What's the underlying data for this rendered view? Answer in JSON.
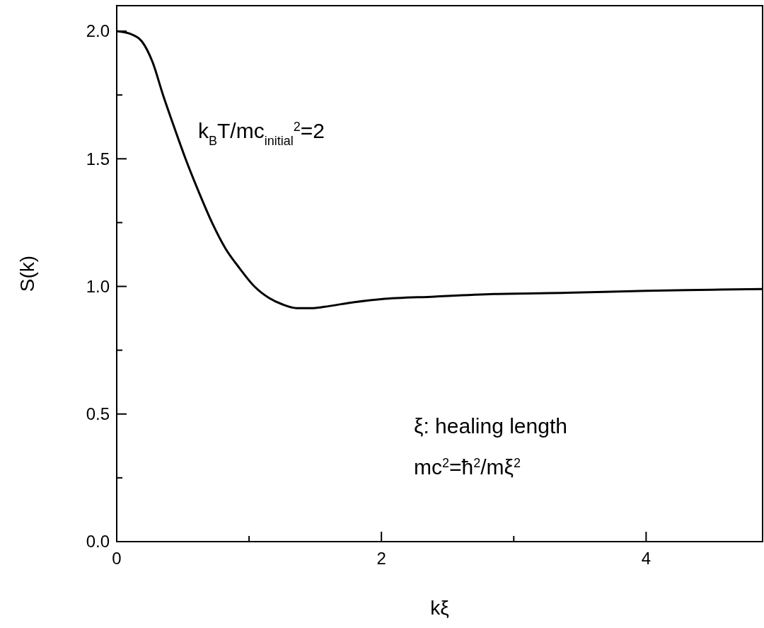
{
  "chart_data": {
    "type": "line",
    "xlabel": "kξ",
    "ylabel": "S(k)",
    "xlim": [
      0,
      4.88
    ],
    "ylim": [
      0,
      2.1
    ],
    "xticks": [
      0,
      {
        "value": 1,
        "label": null
      },
      2,
      {
        "value": 3,
        "label": null
      },
      4
    ],
    "yticks": [
      {
        "value": 0,
        "label": "0.0"
      },
      {
        "value": 0.25,
        "label": null
      },
      {
        "value": 0.5,
        "label": "0.5"
      },
      {
        "value": 0.75,
        "label": null
      },
      {
        "value": 1,
        "label": "1.0"
      },
      {
        "value": 1.25,
        "label": null
      },
      {
        "value": 1.5,
        "label": "1.5"
      },
      {
        "value": 1.75,
        "label": null
      },
      {
        "value": 2,
        "label": "2.0"
      }
    ],
    "series": [
      {
        "color": "#000000",
        "x": [
          0,
          0.1,
          0.19,
          0.27,
          0.35,
          0.43,
          0.52,
          0.62,
          0.72,
          0.82,
          0.93,
          1.04,
          1.15,
          1.25,
          1.36,
          1.47,
          1.57,
          1.75,
          2.0,
          2.4,
          2.85,
          3.4,
          4.0,
          4.5,
          4.88
        ],
        "values": [
          2.0,
          1.99,
          1.96,
          1.88,
          1.75,
          1.63,
          1.5,
          1.37,
          1.25,
          1.15,
          1.07,
          1.0,
          0.955,
          0.93,
          0.915,
          0.915,
          0.92,
          0.935,
          0.95,
          0.96,
          0.97,
          0.975,
          0.983,
          0.987,
          0.99
        ]
      }
    ],
    "grid": false,
    "marker": "none",
    "line_style": "solid",
    "annotations": [
      "k$_{B}$T/mc$_{initial}$$^{2}$=2",
      "ξ: healing length",
      "mc$^{2}$=ħ$^{2}$/mξ$^{2}$"
    ]
  }
}
